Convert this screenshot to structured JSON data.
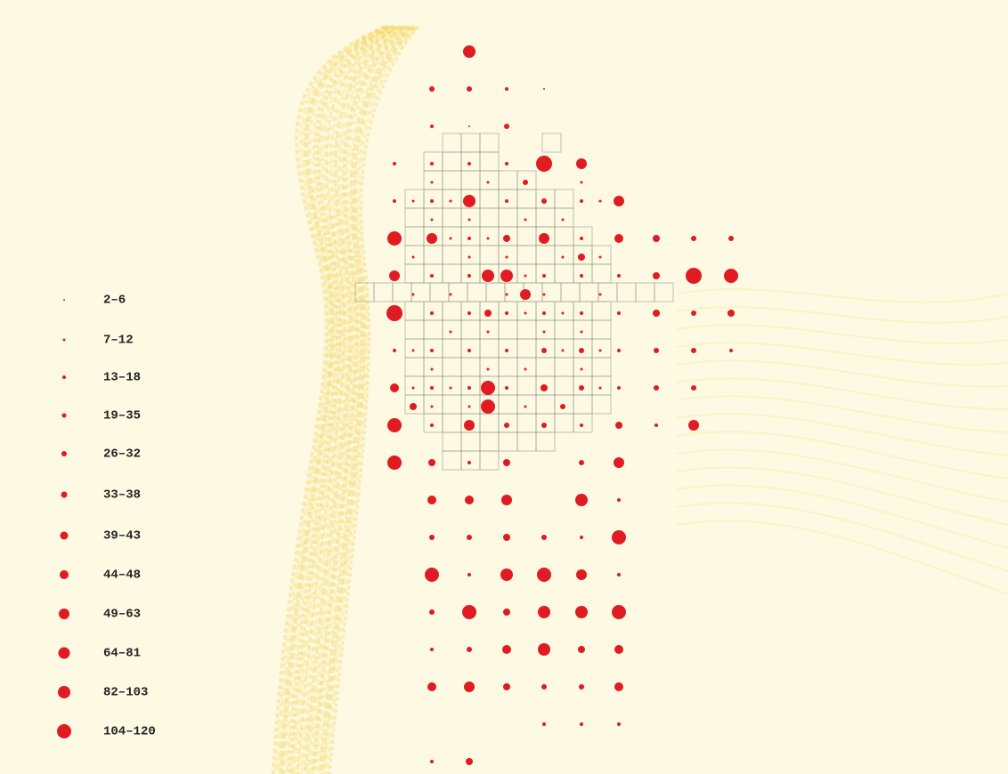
{
  "legend": {
    "labels": [
      "2–6",
      "7–12",
      "13–18",
      "19–35",
      "26–32",
      "33–38",
      "39–43",
      "44–48",
      "49–63",
      "64–81",
      "82–103",
      "104–120"
    ]
  }
}
